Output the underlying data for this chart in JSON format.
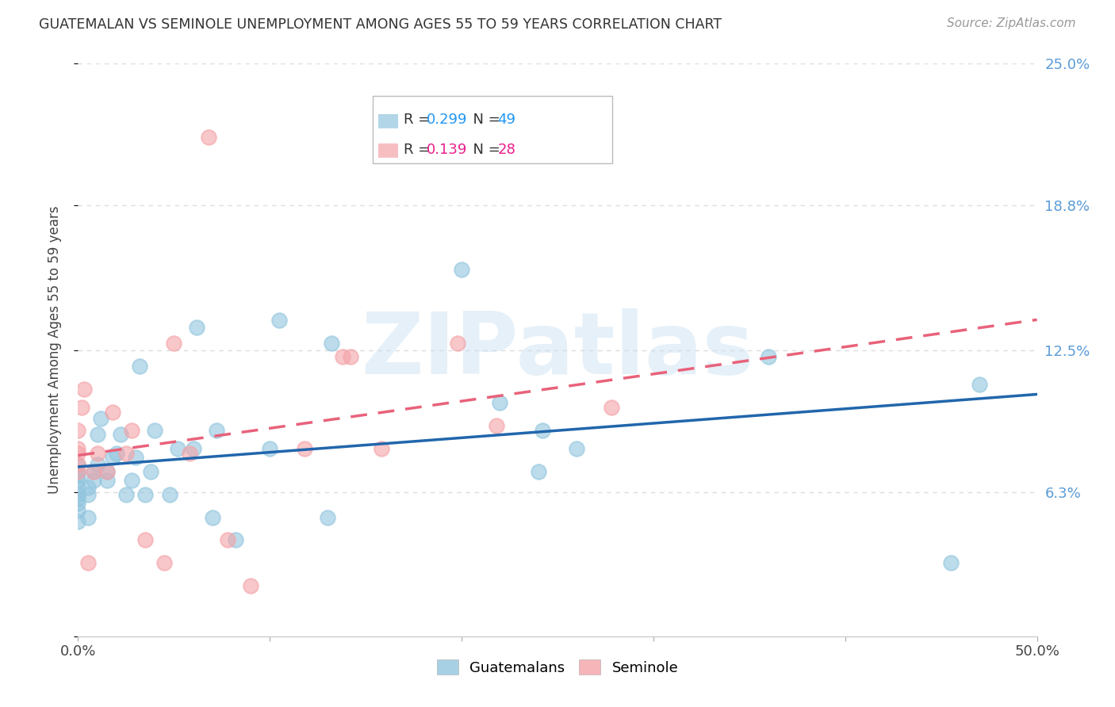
{
  "title": "GUATEMALAN VS SEMINOLE UNEMPLOYMENT AMONG AGES 55 TO 59 YEARS CORRELATION CHART",
  "source": "Source: ZipAtlas.com",
  "ylabel": "Unemployment Among Ages 55 to 59 years",
  "xlim": [
    0.0,
    0.5
  ],
  "ylim": [
    0.0,
    0.25
  ],
  "ytick_positions": [
    0.0,
    0.063,
    0.125,
    0.188,
    0.25
  ],
  "yticklabels_right": [
    "",
    "6.3%",
    "12.5%",
    "18.8%",
    "25.0%"
  ],
  "watermark": "ZIPatlas",
  "guatemalan_color": "#92c5de",
  "seminole_color": "#f4a3a8",
  "guatemalan_line_color": "#2166ac",
  "seminole_line_color": "#e8627a",
  "R_guatemalan": 0.299,
  "N_guatemalan": 49,
  "R_seminole": 0.139,
  "N_seminole": 28,
  "guatemalan_x": [
    0.0,
    0.0,
    0.0,
    0.0,
    0.0,
    0.0,
    0.0,
    0.0,
    0.0,
    0.0,
    0.005,
    0.005,
    0.005,
    0.008,
    0.008,
    0.01,
    0.01,
    0.012,
    0.015,
    0.015,
    0.018,
    0.02,
    0.022,
    0.025,
    0.028,
    0.03,
    0.032,
    0.035,
    0.038,
    0.04,
    0.048,
    0.052,
    0.06,
    0.062,
    0.07,
    0.072,
    0.082,
    0.1,
    0.105,
    0.13,
    0.132,
    0.2,
    0.22,
    0.24,
    0.242,
    0.26,
    0.36,
    0.455,
    0.47
  ],
  "guatemalan_y": [
    0.05,
    0.055,
    0.058,
    0.06,
    0.062,
    0.065,
    0.068,
    0.07,
    0.072,
    0.075,
    0.052,
    0.062,
    0.065,
    0.068,
    0.072,
    0.075,
    0.088,
    0.095,
    0.068,
    0.072,
    0.078,
    0.08,
    0.088,
    0.062,
    0.068,
    0.078,
    0.118,
    0.062,
    0.072,
    0.09,
    0.062,
    0.082,
    0.082,
    0.135,
    0.052,
    0.09,
    0.042,
    0.082,
    0.138,
    0.052,
    0.128,
    0.16,
    0.102,
    0.072,
    0.09,
    0.082,
    0.122,
    0.032,
    0.11
  ],
  "seminole_x": [
    0.0,
    0.0,
    0.0,
    0.0,
    0.0,
    0.002,
    0.003,
    0.005,
    0.008,
    0.01,
    0.015,
    0.018,
    0.025,
    0.028,
    0.035,
    0.045,
    0.05,
    0.058,
    0.068,
    0.078,
    0.09,
    0.118,
    0.138,
    0.142,
    0.158,
    0.198,
    0.218,
    0.278
  ],
  "seminole_y": [
    0.072,
    0.075,
    0.08,
    0.082,
    0.09,
    0.1,
    0.108,
    0.032,
    0.072,
    0.08,
    0.072,
    0.098,
    0.08,
    0.09,
    0.042,
    0.032,
    0.128,
    0.08,
    0.218,
    0.042,
    0.022,
    0.082,
    0.122,
    0.122,
    0.082,
    0.128,
    0.092,
    0.1
  ],
  "background_color": "#ffffff",
  "grid_color": "#dddddd"
}
